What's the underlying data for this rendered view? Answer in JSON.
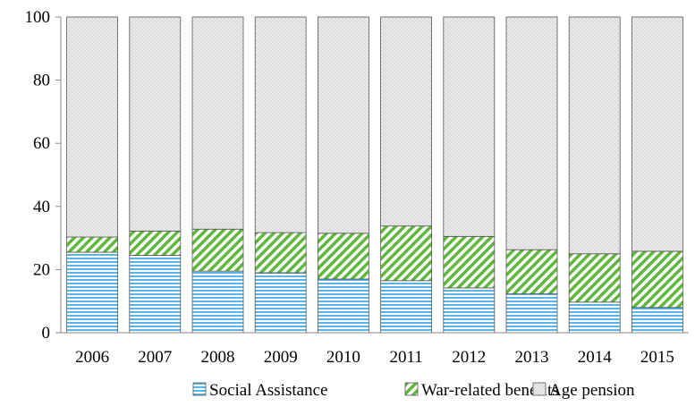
{
  "chart_data": {
    "type": "bar",
    "stacked": true,
    "categories": [
      "2006",
      "2007",
      "2008",
      "2009",
      "2010",
      "2011",
      "2012",
      "2013",
      "2014",
      "2015"
    ],
    "series": [
      {
        "name": "Social Assistance",
        "values": [
          25.5,
          24.5,
          19.5,
          19.0,
          17.0,
          16.5,
          14.2,
          12.3,
          9.7,
          8.0
        ],
        "color": "#5ab4e6",
        "pattern": "horizontal-stripes"
      },
      {
        "name": "War-related benefits",
        "values": [
          4.8,
          7.7,
          13.3,
          12.7,
          14.5,
          17.3,
          16.3,
          14.0,
          15.3,
          17.8
        ],
        "color": "#5fb83c",
        "pattern": "diagonal-stripes"
      },
      {
        "name": "Age pension",
        "values": [
          69.7,
          67.8,
          67.2,
          68.3,
          68.5,
          66.2,
          69.5,
          73.7,
          75.0,
          74.2
        ],
        "color": "#c8c8c8",
        "pattern": "dots"
      }
    ],
    "ylim": [
      0,
      100
    ],
    "yticks": [
      "0",
      "20",
      "40",
      "60",
      "80",
      "100"
    ],
    "grid": false,
    "legend_position": "bottom"
  }
}
